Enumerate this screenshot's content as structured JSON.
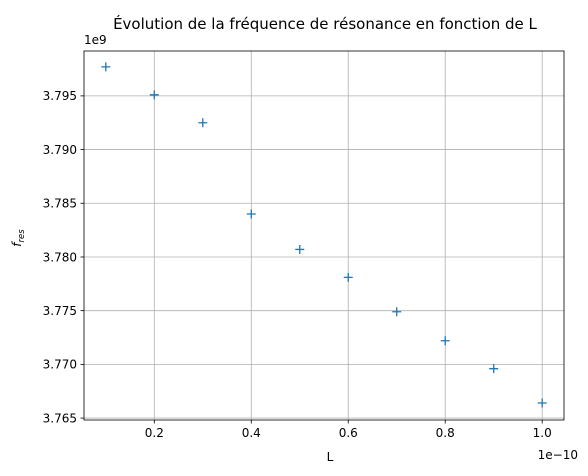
{
  "chart_data": {
    "type": "scatter",
    "title": "Évolution de la fréquence de résonance en fonction de L",
    "xlabel": "L",
    "ylabel": "f_res",
    "ylabel_main": "f",
    "ylabel_sub": "res",
    "x_offset_label": "1e−10",
    "y_offset_label": "1e9",
    "grid": true,
    "marker": "+",
    "marker_color": "#1f77b4",
    "xlim": [
      0.055,
      1.045
    ],
    "ylim": [
      3.76482,
      3.79918
    ],
    "x_ticks": [
      0.2,
      0.4,
      0.6,
      0.8,
      1.0
    ],
    "x_tick_labels": [
      "0.2",
      "0.4",
      "0.6",
      "0.8",
      "1.0"
    ],
    "y_ticks": [
      3.765,
      3.77,
      3.775,
      3.78,
      3.785,
      3.79,
      3.795
    ],
    "y_tick_labels": [
      "3.765",
      "3.770",
      "3.775",
      "3.780",
      "3.785",
      "3.790",
      "3.795"
    ],
    "x": [
      0.1,
      0.2,
      0.3,
      0.4,
      0.5,
      0.6,
      0.7,
      0.8,
      0.9,
      1.0
    ],
    "series": [
      {
        "values": [
          3.7977,
          3.7951,
          3.7925,
          3.784,
          3.7807,
          3.7781,
          3.7749,
          3.7722,
          3.7696,
          3.7664
        ]
      }
    ]
  }
}
